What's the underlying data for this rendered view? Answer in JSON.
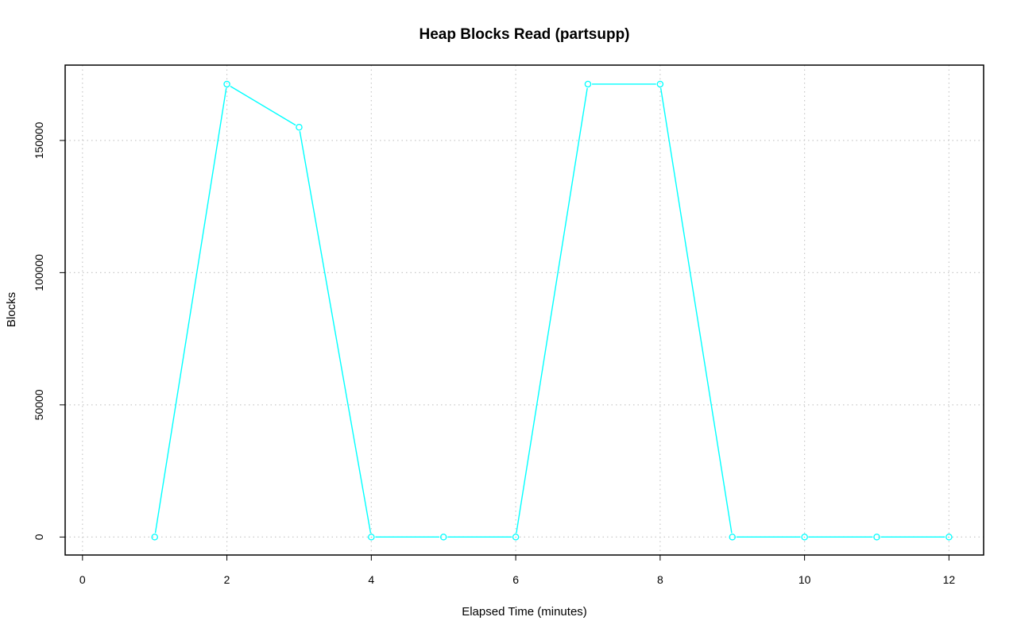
{
  "chart_data": {
    "type": "line",
    "title": "Heap Blocks Read (partsupp)",
    "xlabel": "Elapsed Time (minutes)",
    "ylabel": "Blocks",
    "xlim": [
      -0.24,
      12.48
    ],
    "ylim": [
      -6800,
      178500
    ],
    "x_ticks": [
      0,
      2,
      4,
      6,
      8,
      10,
      12
    ],
    "y_ticks": [
      0,
      50000,
      100000,
      150000
    ],
    "grid": true,
    "series": [
      {
        "color": "#00ffff",
        "marker": "open-circle",
        "x": [
          1,
          2,
          3,
          4,
          5,
          6,
          7,
          8,
          9,
          10,
          11,
          12
        ],
        "y": [
          0,
          171300,
          155000,
          0,
          0,
          0,
          171300,
          171300,
          0,
          0,
          0,
          0
        ]
      }
    ]
  }
}
